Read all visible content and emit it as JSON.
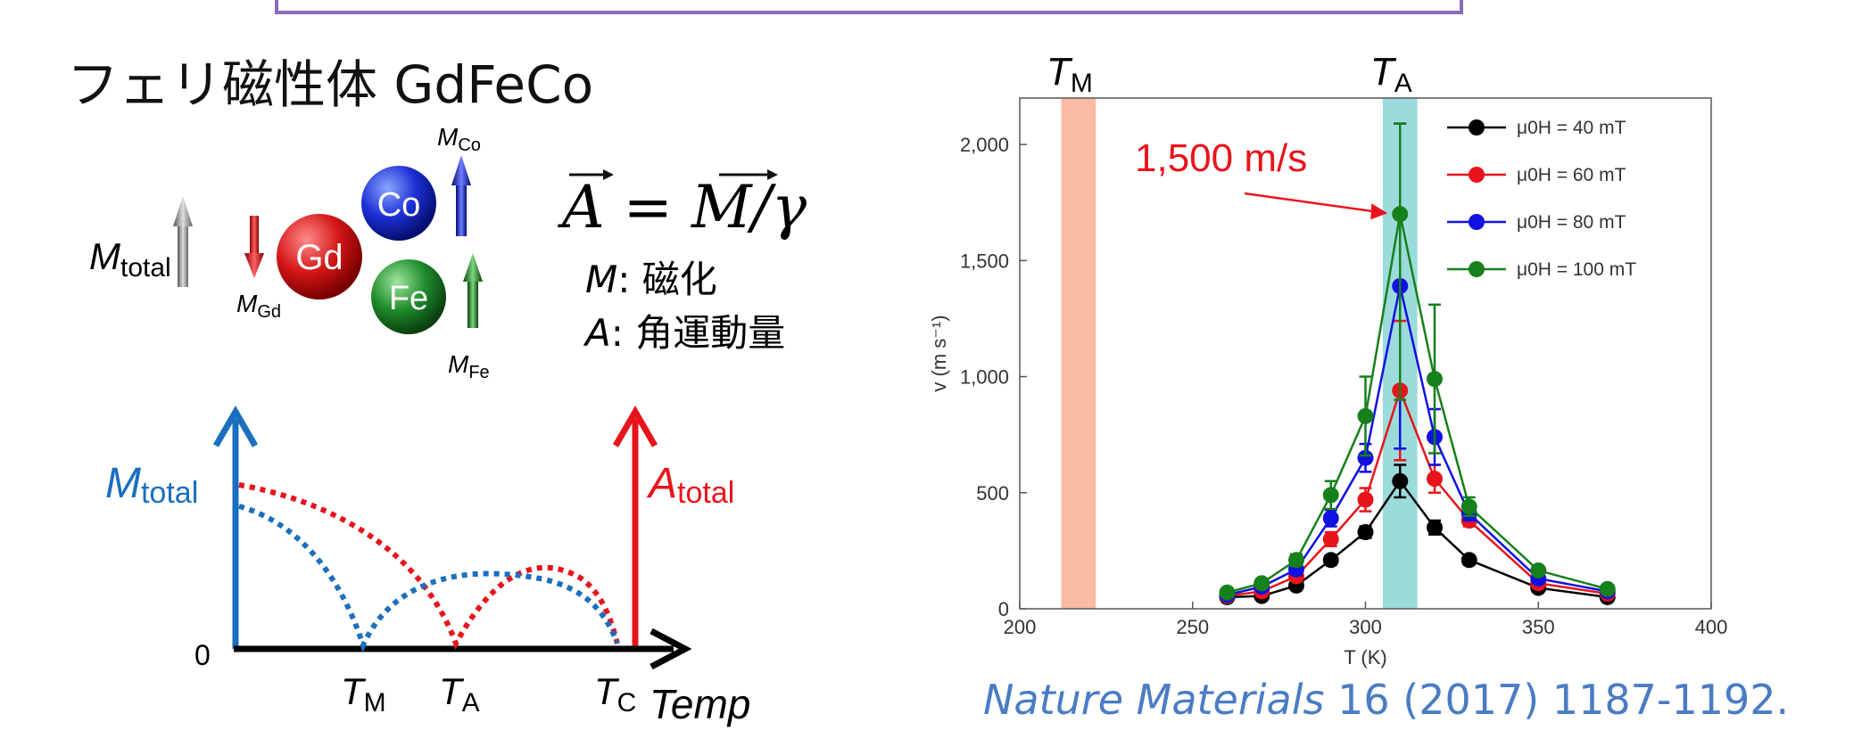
{
  "title": "フェリ磁性体 GdFeCo",
  "atoms": {
    "gd": "Gd",
    "co": "Co",
    "fe": "Fe",
    "m_total": "M",
    "m_total_sub": "total",
    "m_gd": "M",
    "m_gd_sub": "Gd",
    "m_co": "M",
    "m_co_sub": "Co",
    "m_fe": "M",
    "m_fe_sub": "Fe"
  },
  "equation": {
    "formula_A": "A",
    "formula_eq": " = ",
    "formula_M": "M",
    "formula_div": "/γ",
    "def_m_sym": "M",
    "def_m_text": ": 磁化",
    "def_a_sym": "A",
    "def_a_text": ": 角運動量"
  },
  "schematic": {
    "m_axis_label": "M",
    "m_axis_sub": "total",
    "a_axis_label": "A",
    "a_axis_sub": "total",
    "origin": "0",
    "tm_label": "T",
    "tm_sub": "M",
    "ta_label": "T",
    "ta_sub": "A",
    "tc_label": "T",
    "tc_sub": "C",
    "x_label": "Temp",
    "colors": {
      "m": "#1a6fbe",
      "a": "#e8141b",
      "axis": "#000000"
    }
  },
  "chart_data": {
    "type": "scatter",
    "xlabel": "T (K)",
    "ylabel": "v (m s⁻¹)",
    "xlim": [
      200,
      400
    ],
    "ylim": [
      0,
      2200
    ],
    "x_ticks": [
      200,
      250,
      300,
      350,
      400
    ],
    "y_ticks": [
      0,
      500,
      1000,
      1500,
      2000
    ],
    "y_tick_labels": [
      "0",
      "500",
      "1,000",
      "1,500",
      "2,000"
    ],
    "grid": false,
    "legend": "top-right",
    "x": [
      260,
      270,
      280,
      290,
      300,
      310,
      320,
      330,
      350,
      370
    ],
    "series": [
      {
        "name": "μ0H = 40 mT",
        "color": "#000000",
        "values": [
          50,
          55,
          100,
          210,
          330,
          550,
          350,
          210,
          90,
          50
        ],
        "errors": [
          10,
          10,
          15,
          20,
          25,
          70,
          30,
          20,
          10,
          10
        ]
      },
      {
        "name": "μ0H = 60 mT",
        "color": "#e8141b",
        "values": [
          55,
          75,
          140,
          300,
          470,
          940,
          560,
          380,
          110,
          65
        ],
        "errors": [
          10,
          12,
          20,
          30,
          50,
          300,
          60,
          25,
          12,
          10
        ]
      },
      {
        "name": "μ0H = 80 mT",
        "color": "#1010e0",
        "values": [
          60,
          95,
          170,
          390,
          650,
          1390,
          740,
          410,
          130,
          75
        ],
        "errors": [
          10,
          15,
          25,
          35,
          60,
          700,
          120,
          30,
          12,
          10
        ]
      },
      {
        "name": "μ0H = 100 mT",
        "color": "#16801a",
        "values": [
          70,
          110,
          210,
          490,
          830,
          1700,
          990,
          440,
          165,
          85
        ],
        "errors": [
          10,
          15,
          25,
          60,
          170,
          800,
          320,
          40,
          15,
          10
        ]
      }
    ],
    "bands": [
      {
        "label": "T",
        "sub": "M",
        "from": 212,
        "to": 222,
        "color": "#f9bba3"
      },
      {
        "label": "T",
        "sub": "A",
        "from": 305,
        "to": 315,
        "color": "#9cdbdb"
      }
    ],
    "annotation": {
      "text": "1,500 m/s",
      "color": "#e8141b",
      "x": 310,
      "y": 1700
    }
  },
  "citation": {
    "journal": "Nature Materials",
    "rest": " 16 (2017) 1187-1192."
  }
}
